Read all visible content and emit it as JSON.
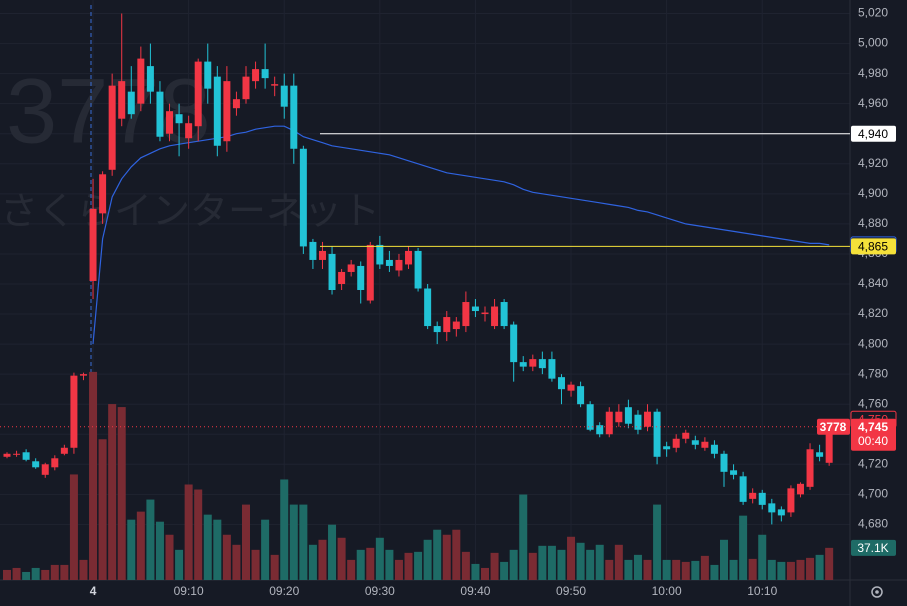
{
  "chart_data": {
    "type": "candlestick",
    "watermark": [
      "3778",
      "さくらインターネット"
    ],
    "categories": [
      null,
      null,
      null,
      null,
      null,
      null,
      null,
      null,
      null,
      "4",
      null,
      null,
      null,
      null,
      null,
      null,
      null,
      null,
      null,
      "09:10",
      null,
      null,
      null,
      null,
      null,
      null,
      null,
      null,
      null,
      "09:20",
      null,
      null,
      null,
      null,
      null,
      null,
      null,
      null,
      null,
      "09:30",
      null,
      null,
      null,
      null,
      null,
      null,
      null,
      null,
      null,
      "09:40",
      null,
      null,
      null,
      null,
      null,
      null,
      null,
      null,
      null,
      "09:50",
      null,
      null,
      null,
      null,
      null,
      null,
      null,
      null,
      null,
      "10:00",
      null,
      null,
      null,
      null,
      null,
      null,
      null,
      null,
      null,
      "10:10",
      null,
      null,
      null,
      null,
      null,
      null,
      null
    ],
    "open": [
      4725,
      4727,
      4728,
      4722,
      4713,
      4718,
      4727,
      4731,
      4779,
      4842,
      4887,
      4916,
      4950,
      4968,
      4960,
      4985,
      4968,
      4940,
      4953,
      4937,
      4945,
      4988,
      4978,
      4935,
      4957,
      4963,
      4975,
      4983,
      4972,
      4972,
      4972,
      4930,
      4868,
      4856,
      4860,
      4840,
      4848,
      4852,
      4829,
      4866,
      4856,
      4849,
      4853,
      4862,
      4837,
      4812,
      4808,
      4810,
      4812,
      4825,
      4820,
      4812,
      4828,
      4813,
      4788,
      4785,
      4790,
      4790,
      4778,
      4769,
      4772,
      4760,
      4746,
      4740,
      4748,
      4758,
      4753,
      4745,
      4755,
      4732,
      4731,
      4737,
      4736,
      4731,
      4733,
      4727,
      4716,
      4712,
      4697,
      4701,
      4694,
      4690,
      4688,
      4700,
      4705,
      4728,
      4721
    ],
    "high": [
      4728,
      4729,
      4730,
      4724,
      4721,
      4726,
      4733,
      4781,
      4781,
      4910,
      4915,
      4980,
      5020,
      4985,
      4998,
      5000,
      4975,
      4960,
      4960,
      4952,
      4990,
      5000,
      4985,
      4985,
      4968,
      4985,
      4988,
      5000,
      4978,
      4980,
      4980,
      4932,
      4870,
      4868,
      4865,
      4850,
      4856,
      4855,
      4868,
      4872,
      4862,
      4860,
      4865,
      4864,
      4840,
      4815,
      4822,
      4818,
      4835,
      4830,
      4825,
      4830,
      4830,
      4815,
      4792,
      4793,
      4795,
      4795,
      4780,
      4775,
      4775,
      4762,
      4748,
      4758,
      4760,
      4763,
      4756,
      4760,
      4757,
      4735,
      4740,
      4743,
      4739,
      4738,
      4736,
      4729,
      4720,
      4715,
      4704,
      4703,
      4697,
      4692,
      4706,
      4708,
      4734,
      4733,
      4750
    ],
    "low": [
      4724,
      4725,
      4722,
      4717,
      4711,
      4716,
      4726,
      4727,
      4776,
      4830,
      4880,
      4912,
      4945,
      4950,
      4955,
      4960,
      4935,
      4935,
      4925,
      4930,
      4935,
      4960,
      4925,
      4928,
      4952,
      4960,
      4970,
      4970,
      4965,
      4950,
      4920,
      4860,
      4850,
      4850,
      4833,
      4836,
      4845,
      4827,
      4827,
      4850,
      4848,
      4845,
      4850,
      4835,
      4810,
      4800,
      4802,
      4805,
      4808,
      4818,
      4815,
      4810,
      4810,
      4775,
      4782,
      4782,
      4780,
      4775,
      4760,
      4765,
      4758,
      4742,
      4738,
      4738,
      4745,
      4744,
      4740,
      4742,
      4720,
      4725,
      4728,
      4734,
      4730,
      4729,
      4724,
      4705,
      4710,
      4693,
      4694,
      4690,
      4680,
      4682,
      4685,
      4698,
      4703,
      4722,
      4719
    ],
    "close": [
      4727,
      4727,
      4723,
      4718,
      4720,
      4724,
      4731,
      4779,
      4780,
      4890,
      4913,
      4972,
      4975,
      4953,
      4990,
      4968,
      4938,
      4955,
      4947,
      4947,
      4988,
      4970,
      4932,
      4975,
      4963,
      4978,
      4983,
      4977,
      4973,
      4958,
      4930,
      4865,
      4856,
      4862,
      4836,
      4848,
      4853,
      4836,
      4866,
      4853,
      4852,
      4856,
      4862,
      4837,
      4812,
      4808,
      4818,
      4815,
      4828,
      4822,
      4821,
      4825,
      4812,
      4788,
      4785,
      4790,
      4784,
      4777,
      4770,
      4773,
      4760,
      4743,
      4740,
      4755,
      4755,
      4747,
      4743,
      4755,
      4725,
      4730,
      4737,
      4741,
      4733,
      4735,
      4727,
      4715,
      4713,
      4695,
      4701,
      4693,
      4688,
      4686,
      4704,
      4707,
      4730,
      4725,
      4745
    ],
    "up_color": "#f23645",
    "down_color": "#22c3d6",
    "volume": {
      "values": [
        11600,
        13920,
        9280,
        13920,
        11600,
        17400,
        17400,
        121800,
        23200,
        240120,
        162400,
        203000,
        199520,
        69600,
        78880,
        92800,
        67280,
        52200,
        34800,
        110200,
        104400,
        75400,
        69600,
        52200,
        40600,
        87000,
        34800,
        69600,
        29000,
        116000,
        87000,
        87000,
        40600,
        46400,
        63800,
        48720,
        23200,
        34800,
        37120,
        48720,
        34800,
        23200,
        31320,
        32480,
        46400,
        58000,
        52200,
        58000,
        32480,
        18560,
        13920,
        31320,
        20880,
        34800,
        98600,
        31320,
        39440,
        39440,
        34800,
        49880,
        42920,
        34800,
        40600,
        23200,
        40600,
        23200,
        29000,
        23200,
        87000,
        23200,
        23200,
        20880,
        22040,
        27840,
        17400,
        46400,
        23200,
        74240,
        24360,
        52200,
        23200,
        20880,
        20880,
        23200,
        25520,
        29000,
        37100
      ],
      "y2lim": [
        0,
        300000
      ],
      "up_color": "#7a2b33",
      "down_color": "#1e6b66"
    },
    "volume_badge": {
      "value": 37100,
      "label": "37.1K",
      "color": "#1e6b66"
    },
    "vwap": {
      "color": "#2f63e0",
      "values": [
        null,
        null,
        null,
        null,
        null,
        null,
        null,
        null,
        null,
        4800,
        4870,
        4898,
        4910,
        4918,
        4924,
        4927,
        4930,
        4932,
        4933,
        4934,
        4935,
        4936,
        4937,
        4938,
        4940,
        4941,
        4943,
        4944,
        4945,
        4945,
        4942,
        4938,
        4936,
        4934,
        4932,
        4931,
        4930,
        4929,
        4928,
        4927,
        4926,
        4924,
        4922,
        4920,
        4918,
        4916,
        4914,
        4913,
        4912,
        4911,
        4910,
        4909,
        4908,
        4906,
        4903,
        4901,
        4900,
        4899,
        4898,
        4897,
        4896,
        4895,
        4894,
        4893,
        4892,
        4891,
        4889,
        4888,
        4886,
        4884,
        4882,
        4880,
        4879,
        4878,
        4877,
        4876,
        4875,
        4874,
        4873,
        4872,
        4871,
        4870,
        4869,
        4868,
        4867,
        4867,
        4866
      ]
    },
    "vwap_badge": {
      "value": 4866,
      "label": "4,866"
    },
    "price_lines": [
      {
        "value": 4940,
        "label": "4,940",
        "color": "#ffffff"
      },
      {
        "value": 4865,
        "label": "4,865",
        "color": "#f5e13a"
      }
    ],
    "high_badge": {
      "value": 4750,
      "label": "4,750"
    },
    "last_price": {
      "value": 4745,
      "label": "4,745",
      "symbol": "3778",
      "countdown": "00:40"
    },
    "ylim": [
      4643,
      5029
    ],
    "yticks": [
      {
        "value": 4680,
        "label": "4,680"
      },
      {
        "value": 4700,
        "label": "4,700"
      },
      {
        "value": 4720,
        "label": "4,720"
      },
      {
        "value": 4740,
        "label": "4,740"
      },
      {
        "value": 4760,
        "label": "4,760"
      },
      {
        "value": 4780,
        "label": "4,780"
      },
      {
        "value": 4800,
        "label": "4,800"
      },
      {
        "value": 4820,
        "label": "4,820"
      },
      {
        "value": 4840,
        "label": "4,840"
      },
      {
        "value": 4860,
        "label": "4,860"
      },
      {
        "value": 4880,
        "label": "4,880"
      },
      {
        "value": 4900,
        "label": "4,900"
      },
      {
        "value": 4920,
        "label": "4,920"
      },
      {
        "value": 4940,
        "label": "4,940"
      },
      {
        "value": 4960,
        "label": "4,960"
      },
      {
        "value": 4980,
        "label": "4,980"
      },
      {
        "value": 5000,
        "label": "5,000"
      },
      {
        "value": 5020,
        "label": "5,020"
      }
    ],
    "grid": true
  }
}
